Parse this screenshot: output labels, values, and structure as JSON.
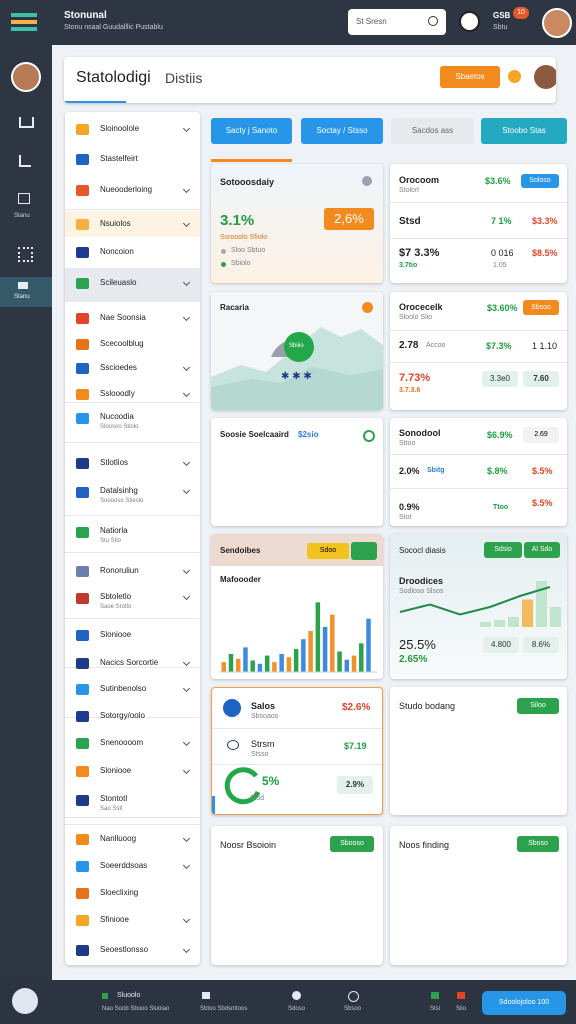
{
  "topbar": {
    "title": "Stonunal",
    "subtitle": "Stonu nsaal Guudalllic Pustablu",
    "search": "St Sresn",
    "user": "GSB",
    "user_sub": "Sbtu",
    "badge": "10"
  },
  "rail": {
    "items": [
      "Stanu",
      "Stanu"
    ]
  },
  "header": {
    "title": "Statolodigi",
    "subtitle": "Distiis",
    "button": "Sbaetos"
  },
  "sidebar": {
    "items": [
      {
        "label": "Sloinoolole"
      },
      {
        "label": "Stastelfeirt"
      },
      {
        "label": "Nueooderloing"
      },
      {
        "label": "Nsuiolos"
      },
      {
        "label": "Noncoion"
      },
      {
        "label": "Scileuaslo"
      },
      {
        "label": "Nae Soonsia"
      },
      {
        "label": "Scecoolblug"
      },
      {
        "label": "Sscioedes"
      },
      {
        "label": "Sslooodly"
      },
      {
        "label": "Nucoodia",
        "sub": "Sloosoo Stiolo"
      },
      {
        "label": "Stlotlios"
      },
      {
        "label": "Datalsinhg",
        "sub": "Suoooso Stieslo"
      },
      {
        "label": "Natiorla",
        "sub": "Stu Stio"
      },
      {
        "label": "Ronoruliun"
      },
      {
        "label": "Sbtoletlo",
        "sub": "Saoe Srotlo"
      },
      {
        "label": "Sloniooe"
      },
      {
        "label": "Nacics Sorcortie"
      },
      {
        "label": "Sutinbenolso"
      },
      {
        "label": "Sotorgy/oolo"
      },
      {
        "label": "Snenoooom"
      },
      {
        "label": "Sloniooe"
      },
      {
        "label": "Stontotl",
        "sub": "Sao Sstl"
      },
      {
        "label": "Nanlluoog"
      },
      {
        "label": "Soeerddsoas"
      },
      {
        "label": "Sloeclixing"
      },
      {
        "label": "Sfiniooe"
      },
      {
        "label": "Seoestlonsso"
      }
    ]
  },
  "tabs": [
    "Sacty j Sanoto",
    "Soctay / Stsso",
    "Sacdos ass",
    "Stoobo Stas"
  ],
  "cards": [
    {
      "title": "Sotooosdaiy",
      "value": "3.1%",
      "badge": "2,6%",
      "note": "Ssrooolo Sfiolo",
      "bullets": [
        "Sloo Sbtuo",
        "Sbiolo"
      ]
    },
    {
      "title": "Orocoom",
      "sub": "Stolorl",
      "value": "$3.6%",
      "badge": "Soloso",
      "rows": [
        [
          "Stsd",
          "7 1%",
          "$3.3%"
        ],
        [
          "$7 3.3%",
          "3.7tio",
          "0 016",
          "1.05",
          "$8.5%"
        ]
      ]
    },
    {
      "title": "Racaria",
      "gauge_label": "Sbiiio"
    },
    {
      "title": "Orocecelk",
      "sub": "Sloolo Slio",
      "value": "$3.60%",
      "badge": "Sbsoo",
      "rows": [
        [
          "2.78",
          "Accoo",
          "$7.3%",
          "1 1.10"
        ],
        [
          "7.73%",
          "3.7.3.6",
          "3.3e0",
          "7.60"
        ]
      ]
    },
    {
      "title": "Soosie Soelcaaird",
      "value": "$2sio"
    },
    {
      "title": "Sonodool",
      "sub": "Sttoo",
      "value": "$6.9%",
      "badge": "2.69",
      "rows": [
        [
          "2.0%",
          "Sbitg",
          "$.8%",
          "$.5%"
        ],
        [
          "0.9%",
          "Stot",
          "Ttoo",
          "$.5%"
        ]
      ]
    },
    {
      "title": "Sendoibes",
      "badge": "Sdoo",
      "subtitle": "Mafoooder",
      "chart": {
        "ylim": [
          0,
          100
        ],
        "values": [
          12,
          22,
          16,
          30,
          14,
          10,
          20,
          12,
          22,
          18,
          28,
          40,
          50,
          85,
          55,
          70,
          25,
          15,
          20,
          35,
          65
        ],
        "colors": [
          "#f0912c",
          "#2ca24c",
          "#f0912c",
          "#3b8be0",
          "#2ca24c",
          "#3b8be0",
          "#2ca24c",
          "#f0912c",
          "#3b8be0",
          "#f0912c",
          "#2ca24c",
          "#3b8be0",
          "#f0912c",
          "#2ca24c",
          "#3b8be0",
          "#f0912c",
          "#2ca24c",
          "#3b8be0",
          "#f0912c",
          "#2ca24c",
          "#3b8be0"
        ]
      }
    },
    {
      "title": "Sococl diasis",
      "buttons": [
        "Sdsio",
        "Al Sdo"
      ],
      "heading": "Droodices",
      "sub": "Sodloso Slsos",
      "value": "25.5%",
      "value2": "2.65%",
      "pills": [
        "4.800",
        "8.6%"
      ],
      "chart": {
        "ylim": [
          0,
          100
        ],
        "line": [
          30,
          45,
          25,
          40,
          62,
          80
        ],
        "bars": [
          10,
          14,
          20,
          55,
          92,
          40
        ]
      }
    },
    {
      "rows": [
        [
          "Salos",
          "Sbsoaos",
          "$2.6%"
        ],
        [
          "Strsm",
          "Stsso",
          "$7.19"
        ]
      ],
      "gauge": "5%",
      "gauge_sub": "Stsd",
      "pill": "2.9%"
    },
    {
      "title": "Studo bodang",
      "button": "Siloo"
    },
    {
      "title": "Noosr Bsoioin",
      "button": "Sbooso"
    },
    {
      "title": "Noos finding",
      "button": "Sboso"
    }
  ],
  "bottombar": {
    "items": [
      {
        "label": "Sluoolo",
        "sub": "Nao Soob Sbooo Sluoiao"
      },
      {
        "label": "Sbtoo Sbdsmtoos"
      },
      {
        "label": "Sdoso"
      },
      {
        "label": "Sbsoo"
      },
      {
        "label": "Stsi"
      },
      {
        "label": "Siio"
      }
    ],
    "button": "Sdoolojoloo 100"
  }
}
